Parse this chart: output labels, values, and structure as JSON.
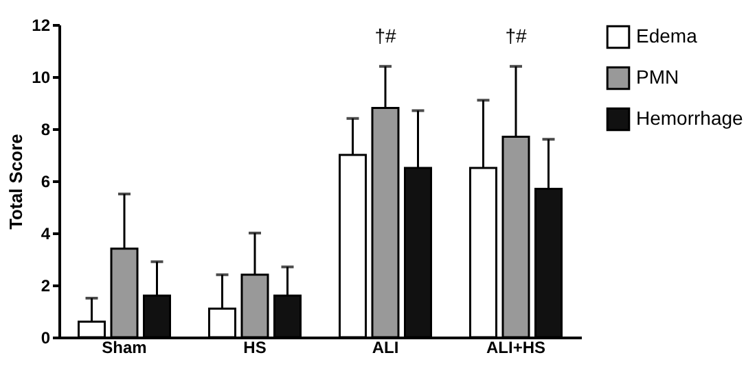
{
  "chart_data": {
    "type": "bar",
    "ylabel": "Total Score",
    "categories": [
      "Sham",
      "HS",
      "ALI",
      "ALI+HS"
    ],
    "series": [
      {
        "name": "Edema",
        "color": "#ffffff",
        "values": [
          0.6,
          1.1,
          7.0,
          6.5
        ],
        "errors": [
          [
            0.6,
            1.5
          ],
          [
            1.1,
            2.4
          ],
          [
            7.0,
            8.4
          ],
          [
            6.5,
            9.1
          ]
        ]
      },
      {
        "name": "PMN",
        "color": "#999999",
        "values": [
          3.4,
          2.4,
          8.8,
          7.7
        ],
        "errors": [
          [
            3.4,
            5.5
          ],
          [
            2.4,
            4.0
          ],
          [
            8.8,
            10.4
          ],
          [
            7.7,
            10.4
          ]
        ]
      },
      {
        "name": "Hemorrhage",
        "color": "#111111",
        "values": [
          1.6,
          1.6,
          6.5,
          5.7
        ],
        "errors": [
          [
            1.6,
            2.9
          ],
          [
            1.6,
            2.7
          ],
          [
            6.5,
            8.7
          ],
          [
            5.7,
            7.6
          ]
        ]
      }
    ],
    "ylim": [
      0,
      12
    ],
    "yticks": [
      0,
      2,
      4,
      6,
      8,
      10,
      12
    ],
    "grid": false,
    "legend": "right",
    "annotations": [
      "†#",
      "†#"
    ]
  }
}
